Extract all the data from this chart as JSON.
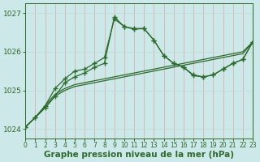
{
  "line1_no_marker": {
    "x": [
      0,
      1,
      2,
      3,
      4,
      5,
      6,
      7,
      8,
      9,
      10,
      11,
      12,
      13,
      14,
      15,
      16,
      17,
      18,
      19,
      20,
      21,
      22,
      23
    ],
    "y": [
      1024.05,
      1024.3,
      1024.6,
      1024.9,
      1025.05,
      1025.15,
      1025.2,
      1025.25,
      1025.3,
      1025.35,
      1025.4,
      1025.45,
      1025.5,
      1025.55,
      1025.6,
      1025.65,
      1025.7,
      1025.75,
      1025.8,
      1025.85,
      1025.9,
      1025.95,
      1026.0,
      1026.25
    ]
  },
  "line2_no_marker": {
    "x": [
      0,
      1,
      2,
      3,
      4,
      5,
      6,
      7,
      8,
      9,
      10,
      11,
      12,
      13,
      14,
      15,
      16,
      17,
      18,
      19,
      20,
      21,
      22,
      23
    ],
    "y": [
      1024.05,
      1024.3,
      1024.55,
      1024.85,
      1025.0,
      1025.1,
      1025.15,
      1025.2,
      1025.25,
      1025.3,
      1025.35,
      1025.4,
      1025.45,
      1025.5,
      1025.55,
      1025.6,
      1025.65,
      1025.7,
      1025.75,
      1025.8,
      1025.85,
      1025.9,
      1025.95,
      1026.25
    ]
  },
  "line3_marker": {
    "x": [
      0,
      1,
      2,
      3,
      4,
      5,
      6,
      7,
      8,
      9,
      10,
      11,
      12,
      13,
      14,
      15,
      16,
      17,
      18,
      19,
      20,
      21,
      22,
      23
    ],
    "y": [
      1024.05,
      1024.3,
      1024.6,
      1025.05,
      1025.3,
      1025.5,
      1025.55,
      1025.7,
      1025.85,
      1026.85,
      1026.65,
      1026.6,
      1026.6,
      1026.3,
      1025.9,
      1025.7,
      1025.6,
      1025.4,
      1025.35,
      1025.4,
      1025.55,
      1025.7,
      1025.8,
      1026.25
    ]
  },
  "line4_marker": {
    "x": [
      0,
      1,
      2,
      3,
      4,
      5,
      6,
      7,
      8,
      9,
      10,
      11,
      12,
      13,
      14,
      15,
      16,
      17,
      18,
      19,
      20,
      21,
      22,
      23
    ],
    "y": [
      1024.05,
      1024.3,
      1024.55,
      1024.85,
      1025.2,
      1025.35,
      1025.45,
      1025.6,
      1025.7,
      1026.9,
      1026.65,
      1026.58,
      1026.6,
      1026.3,
      1025.9,
      1025.7,
      1025.6,
      1025.38,
      1025.35,
      1025.4,
      1025.55,
      1025.7,
      1025.8,
      1026.25
    ]
  },
  "bg_color": "#cde8e8",
  "line_color": "#2d6a2d",
  "grid_color": "#b8d4d4",
  "xlabel": "Graphe pression niveau de la mer (hPa)",
  "xlim": [
    0,
    23
  ],
  "ylim": [
    1023.75,
    1027.25
  ],
  "yticks": [
    1024,
    1025,
    1026,
    1027
  ],
  "xticks": [
    0,
    1,
    2,
    3,
    4,
    5,
    6,
    7,
    8,
    9,
    10,
    11,
    12,
    13,
    14,
    15,
    16,
    17,
    18,
    19,
    20,
    21,
    22,
    23
  ],
  "xlabel_fontsize": 7.5,
  "tick_fontsize": 6.5
}
